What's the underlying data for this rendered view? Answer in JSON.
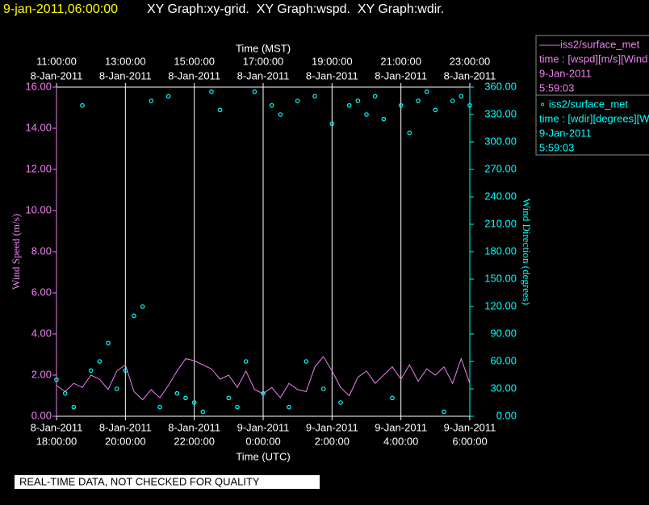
{
  "header": {
    "time": "9-jan-2011,06:00:00",
    "title": "XY Graph:xy-grid.  XY Graph:wspd.  XY Graph:wdir."
  },
  "legend": [
    {
      "lines": [
        "——iss2/surface_met",
        "time : [wspd][m/s][Wind Speed]",
        "9-Jan-2011",
        "5:59:03"
      ]
    },
    {
      "lines": [
        "∘ iss2/surface_met",
        "time : [wdir][degrees][Wind Direction]",
        "9-Jan-2011",
        "5:59:03"
      ]
    }
  ],
  "banner": "REAL-TIME DATA, NOT CHECKED FOR QUALITY",
  "chart_data": {
    "type": "line",
    "xlabel": "Time (UTC)",
    "x2label": "Time (MST)",
    "ylabel": "Wind Speed (m/s)",
    "y2label": "Wind Direction (degrees)",
    "xlim": [
      "2011-01-08T18:00",
      "2011-01-09T06:00"
    ],
    "xticks": [
      {
        "value": "2011-01-08T18:00",
        "label": [
          "8-Jan-2011",
          "18:00:00"
        ]
      },
      {
        "value": "2011-01-08T20:00",
        "label": [
          "8-Jan-2011",
          "20:00:00"
        ]
      },
      {
        "value": "2011-01-08T22:00",
        "label": [
          "8-Jan-2011",
          "22:00:00"
        ]
      },
      {
        "value": "2011-01-09T00:00",
        "label": [
          "9-Jan-2011",
          "0:00:00"
        ]
      },
      {
        "value": "2011-01-09T02:00",
        "label": [
          "9-Jan-2011",
          "2:00:00"
        ]
      },
      {
        "value": "2011-01-09T04:00",
        "label": [
          "9-Jan-2011",
          "4:00:00"
        ]
      },
      {
        "value": "2011-01-09T06:00",
        "label": [
          "9-Jan-2011",
          "6:00:00"
        ]
      }
    ],
    "x2ticks": [
      {
        "value": "2011-01-08T18:00",
        "label": [
          "11:00:00",
          "8-Jan-2011"
        ]
      },
      {
        "value": "2011-01-08T20:00",
        "label": [
          "13:00:00",
          "8-Jan-2011"
        ]
      },
      {
        "value": "2011-01-08T22:00",
        "label": [
          "15:00:00",
          "8-Jan-2011"
        ]
      },
      {
        "value": "2011-01-09T00:00",
        "label": [
          "17:00:00",
          "8-Jan-2011"
        ]
      },
      {
        "value": "2011-01-09T02:00",
        "label": [
          "19:00:00",
          "8-Jan-2011"
        ]
      },
      {
        "value": "2011-01-09T04:00",
        "label": [
          "21:00:00",
          "8-Jan-2011"
        ]
      },
      {
        "value": "2011-01-09T06:00",
        "label": [
          "23:00:00",
          "8-Jan-2011"
        ]
      }
    ],
    "ylim": [
      0,
      16
    ],
    "yticks": [
      {
        "value": 0,
        "label": "0.00"
      },
      {
        "value": 2,
        "label": "2.00"
      },
      {
        "value": 4,
        "label": "4.00"
      },
      {
        "value": 6,
        "label": "6.00"
      },
      {
        "value": 8,
        "label": "8.00"
      },
      {
        "value": 10,
        "label": "10.00"
      },
      {
        "value": 12,
        "label": "12.00"
      },
      {
        "value": 14,
        "label": "14.00"
      },
      {
        "value": 16,
        "label": "16.00"
      }
    ],
    "y2lim": [
      0,
      360
    ],
    "y2ticks": [
      {
        "value": 0,
        "label": "0.00"
      },
      {
        "value": 30,
        "label": "30.00"
      },
      {
        "value": 60,
        "label": "60.00"
      },
      {
        "value": 90,
        "label": "90.00"
      },
      {
        "value": 120,
        "label": "120.00"
      },
      {
        "value": 150,
        "label": "150.00"
      },
      {
        "value": 180,
        "label": "180.00"
      },
      {
        "value": 210,
        "label": "210.00"
      },
      {
        "value": 240,
        "label": "240.00"
      },
      {
        "value": 270,
        "label": "270.00"
      },
      {
        "value": 300,
        "label": "300.00"
      },
      {
        "value": 330,
        "label": "330.00"
      },
      {
        "value": 360,
        "label": "360.00"
      }
    ],
    "grid": true,
    "x": [
      "2011-01-08T18:00",
      "2011-01-08T18:15",
      "2011-01-08T18:30",
      "2011-01-08T18:45",
      "2011-01-08T19:00",
      "2011-01-08T19:15",
      "2011-01-08T19:30",
      "2011-01-08T19:45",
      "2011-01-08T20:00",
      "2011-01-08T20:15",
      "2011-01-08T20:30",
      "2011-01-08T20:45",
      "2011-01-08T21:00",
      "2011-01-08T21:15",
      "2011-01-08T21:30",
      "2011-01-08T21:45",
      "2011-01-08T22:00",
      "2011-01-08T22:15",
      "2011-01-08T22:30",
      "2011-01-08T22:45",
      "2011-01-08T23:00",
      "2011-01-08T23:15",
      "2011-01-08T23:30",
      "2011-01-08T23:45",
      "2011-01-09T00:00",
      "2011-01-09T00:15",
      "2011-01-09T00:30",
      "2011-01-09T00:45",
      "2011-01-09T01:00",
      "2011-01-09T01:15",
      "2011-01-09T01:30",
      "2011-01-09T01:45",
      "2011-01-09T02:00",
      "2011-01-09T02:15",
      "2011-01-09T02:30",
      "2011-01-09T02:45",
      "2011-01-09T03:00",
      "2011-01-09T03:15",
      "2011-01-09T03:30",
      "2011-01-09T03:45",
      "2011-01-09T04:00",
      "2011-01-09T04:15",
      "2011-01-09T04:30",
      "2011-01-09T04:45",
      "2011-01-09T05:00",
      "2011-01-09T05:15",
      "2011-01-09T05:30",
      "2011-01-09T05:45",
      "2011-01-09T06:00"
    ],
    "series": [
      {
        "name": "wspd",
        "color": "#ee82ee",
        "mark": "line",
        "values": [
          1.5,
          1.2,
          1.6,
          1.4,
          2.0,
          1.8,
          1.3,
          2.2,
          2.5,
          1.2,
          0.8,
          1.3,
          0.9,
          1.5,
          2.2,
          2.8,
          2.7,
          2.5,
          2.3,
          1.8,
          2.0,
          1.4,
          2.2,
          1.3,
          1.1,
          1.4,
          0.9,
          1.6,
          1.3,
          1.2,
          2.4,
          2.9,
          2.2,
          1.4,
          1.0,
          1.9,
          2.2,
          1.6,
          2.0,
          2.4,
          1.8,
          2.5,
          1.7,
          2.3,
          2.0,
          2.4,
          1.6,
          2.8,
          1.6
        ]
      },
      {
        "name": "wdir",
        "color": "#00ffff",
        "mark": "scatter",
        "axis": "y2",
        "values": [
          40,
          25,
          10,
          340,
          50,
          60,
          80,
          30,
          50,
          110,
          120,
          345,
          10,
          350,
          25,
          20,
          15,
          5,
          355,
          335,
          20,
          10,
          60,
          355,
          25,
          340,
          330,
          10,
          345,
          60,
          350,
          30,
          320,
          15,
          340,
          345,
          330,
          350,
          325,
          20,
          340,
          310,
          345,
          355,
          335,
          5,
          345,
          350,
          340
        ]
      }
    ]
  }
}
